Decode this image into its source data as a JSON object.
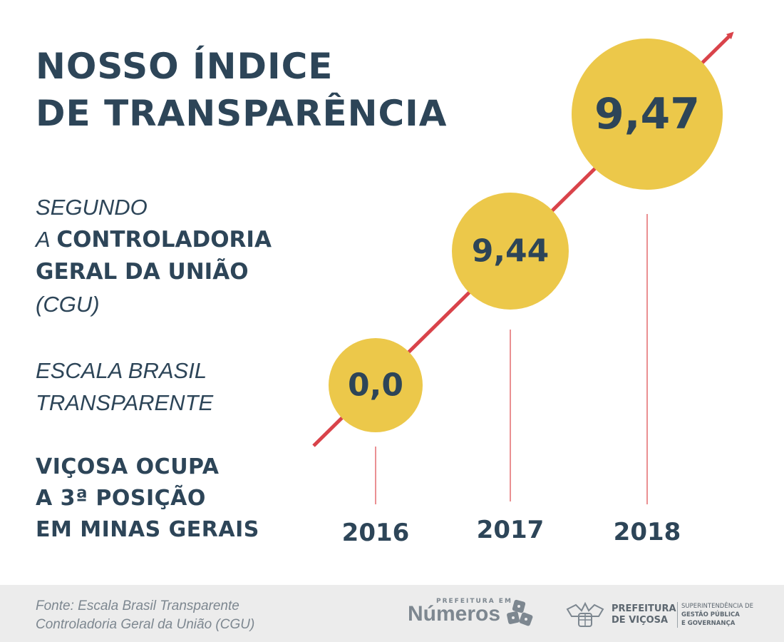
{
  "title": {
    "line1": "NOSSO ÍNDICE",
    "line2": "DE TRANSPARÊNCIA"
  },
  "source_text": {
    "line1": "SEGUNDO",
    "line2_prefix": "A",
    "line2_bold": "CONTROLADORIA",
    "line3_bold": "GERAL DA UNIÃO",
    "line4": "(CGU)"
  },
  "scale_text": {
    "line1": "ESCALA BRASIL",
    "line2": "TRANSPARENTE"
  },
  "rank_text": {
    "line1": "VIÇOSA OCUPA",
    "line2": "A 3ª POSIÇÃO",
    "line3": "EM MINAS GERAIS"
  },
  "chart_data": {
    "type": "scatter",
    "categories": [
      "2016",
      "2017",
      "2018"
    ],
    "values": [
      0.0,
      9.44,
      9.47
    ],
    "data_labels": [
      "0,0",
      "9,44",
      "9,47"
    ],
    "colors": {
      "bubble": "#ecc84a",
      "trend_arrow": "#d9434a",
      "text": "#2d4558",
      "drop_line": "#e36b6f"
    }
  },
  "footer": {
    "source_line1": "Fonte: Escala Brasil Transparente",
    "source_line2": "Controladoria Geral da União (CGU)",
    "logo1_small": "PREFEITURA EM",
    "logo1_big": "Números",
    "logo2_name_line1": "PREFEITURA",
    "logo2_name_line2": "DE VIÇOSA",
    "logo2_sub_line1": "SUPERINTENDÊNCIA DE",
    "logo2_sub_line2": "GESTÃO PÚBLICA",
    "logo2_sub_line3": "E GOVERNANÇA"
  }
}
